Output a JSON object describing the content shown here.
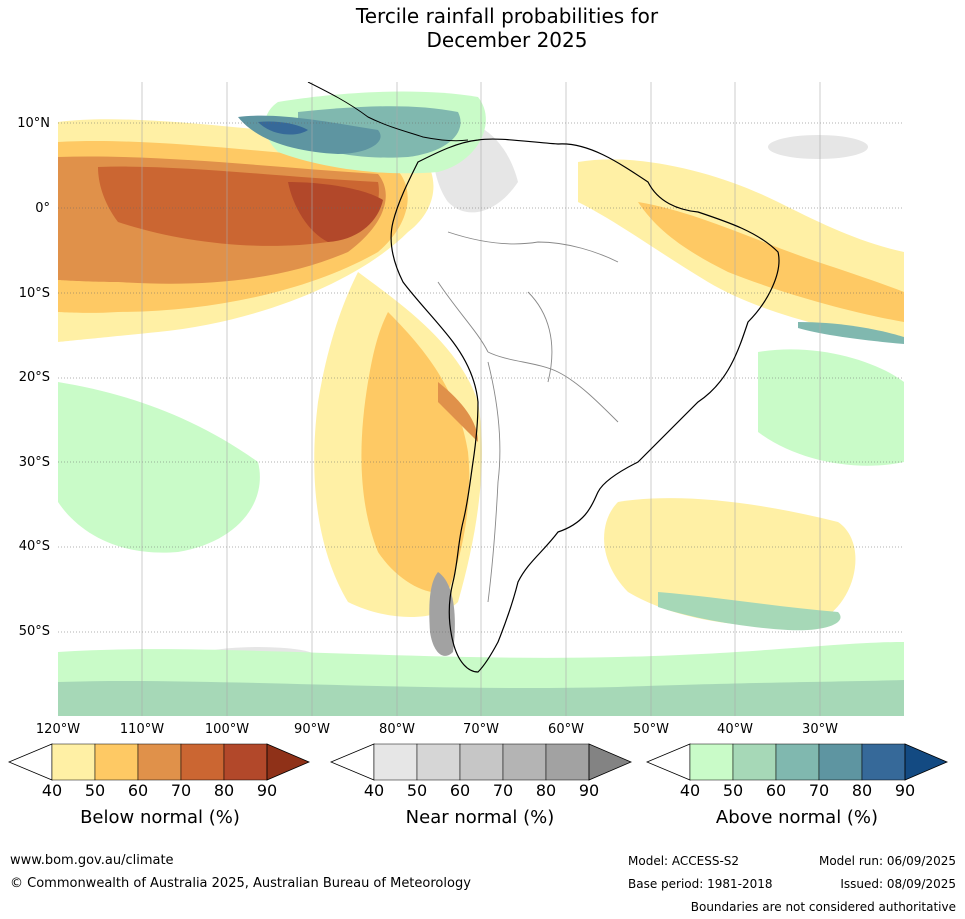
{
  "title": {
    "line1": "Tercile rainfall probabilities for",
    "line2": "December 2025"
  },
  "map": {
    "lat_labels": [
      "10°N",
      "0°",
      "10°S",
      "20°S",
      "30°S",
      "40°S",
      "50°S"
    ],
    "lon_labels": [
      "120°W",
      "110°W",
      "100°W",
      "90°W",
      "80°W",
      "70°W",
      "60°W",
      "50°W",
      "40°W",
      "30°W"
    ]
  },
  "colorbars": [
    {
      "title": "Below normal (%)",
      "ticks": [
        "40",
        "50",
        "60",
        "70",
        "80",
        "90"
      ],
      "colors": [
        "#fff0a5",
        "#fec964",
        "#e0914a",
        "#cb6632",
        "#b2482a",
        "#8f3118"
      ]
    },
    {
      "title": "Near normal (%)",
      "ticks": [
        "40",
        "50",
        "60",
        "70",
        "80",
        "90"
      ],
      "colors": [
        "#e6e6e6",
        "#d6d6d6",
        "#c6c6c6",
        "#b4b4b4",
        "#a2a2a2",
        "#838383"
      ]
    },
    {
      "title": "Above normal (%)",
      "ticks": [
        "40",
        "50",
        "60",
        "70",
        "80",
        "90"
      ],
      "colors": [
        "#c9fbc8",
        "#a6d8b7",
        "#80b8af",
        "#5e95a1",
        "#366999",
        "#134a82"
      ]
    }
  ],
  "footer": {
    "website": "www.bom.gov.au/climate",
    "copyright": "© Commonwealth of Australia 2025, Australian Bureau of Meteorology",
    "model": "Model: ACCESS-S2",
    "base_period": "Base period: 1981-2018",
    "model_run": "Model run: 06/09/2025",
    "issued": "Issued: 08/09/2025",
    "disclaimer": "Boundaries are not considered authoritative"
  }
}
